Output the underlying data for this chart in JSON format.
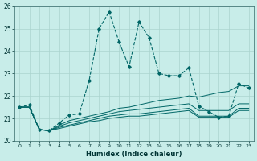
{
  "xlabel": "Humidex (Indice chaleur)",
  "background_color": "#c8ede9",
  "grid_color": "#aad4ce",
  "line_color": "#006666",
  "xlim": [
    -0.5,
    23.5
  ],
  "ylim": [
    20,
    26
  ],
  "yticks": [
    20,
    21,
    22,
    23,
    24,
    25,
    26
  ],
  "xtick_labels": [
    "0",
    "1",
    "2",
    "3",
    "4",
    "5",
    "6",
    "7",
    "8",
    "9",
    "10",
    "11",
    "12",
    "13",
    "14",
    "15",
    "16",
    "17",
    "18",
    "19",
    "20",
    "21",
    "22",
    "23"
  ],
  "series_main": [
    21.5,
    21.6,
    20.5,
    20.45,
    20.8,
    21.15,
    21.2,
    22.7,
    25.0,
    25.75,
    24.4,
    23.3,
    25.3,
    24.6,
    23.0,
    22.9,
    22.9,
    23.25,
    21.55,
    21.3,
    21.05,
    21.1,
    22.55,
    22.35
  ],
  "series_flat": [
    [
      21.5,
      21.5,
      20.5,
      20.45,
      20.55,
      20.65,
      20.75,
      20.85,
      20.9,
      21.0,
      21.05,
      21.1,
      21.1,
      21.15,
      21.2,
      21.25,
      21.3,
      21.35,
      21.05,
      21.05,
      21.05,
      21.05,
      21.35,
      21.35
    ],
    [
      21.5,
      21.5,
      20.5,
      20.45,
      20.6,
      20.7,
      20.8,
      20.9,
      21.0,
      21.1,
      21.15,
      21.2,
      21.2,
      21.25,
      21.3,
      21.35,
      21.4,
      21.45,
      21.1,
      21.1,
      21.1,
      21.1,
      21.45,
      21.45
    ],
    [
      21.5,
      21.5,
      20.5,
      20.45,
      20.65,
      20.8,
      20.9,
      21.0,
      21.1,
      21.2,
      21.3,
      21.35,
      21.4,
      21.45,
      21.5,
      21.55,
      21.6,
      21.65,
      21.35,
      21.35,
      21.35,
      21.35,
      21.65,
      21.65
    ],
    [
      21.5,
      21.5,
      20.5,
      20.45,
      20.7,
      20.9,
      21.0,
      21.1,
      21.2,
      21.3,
      21.45,
      21.5,
      21.6,
      21.7,
      21.8,
      21.85,
      21.9,
      22.0,
      21.95,
      22.05,
      22.15,
      22.2,
      22.45,
      22.45
    ]
  ]
}
